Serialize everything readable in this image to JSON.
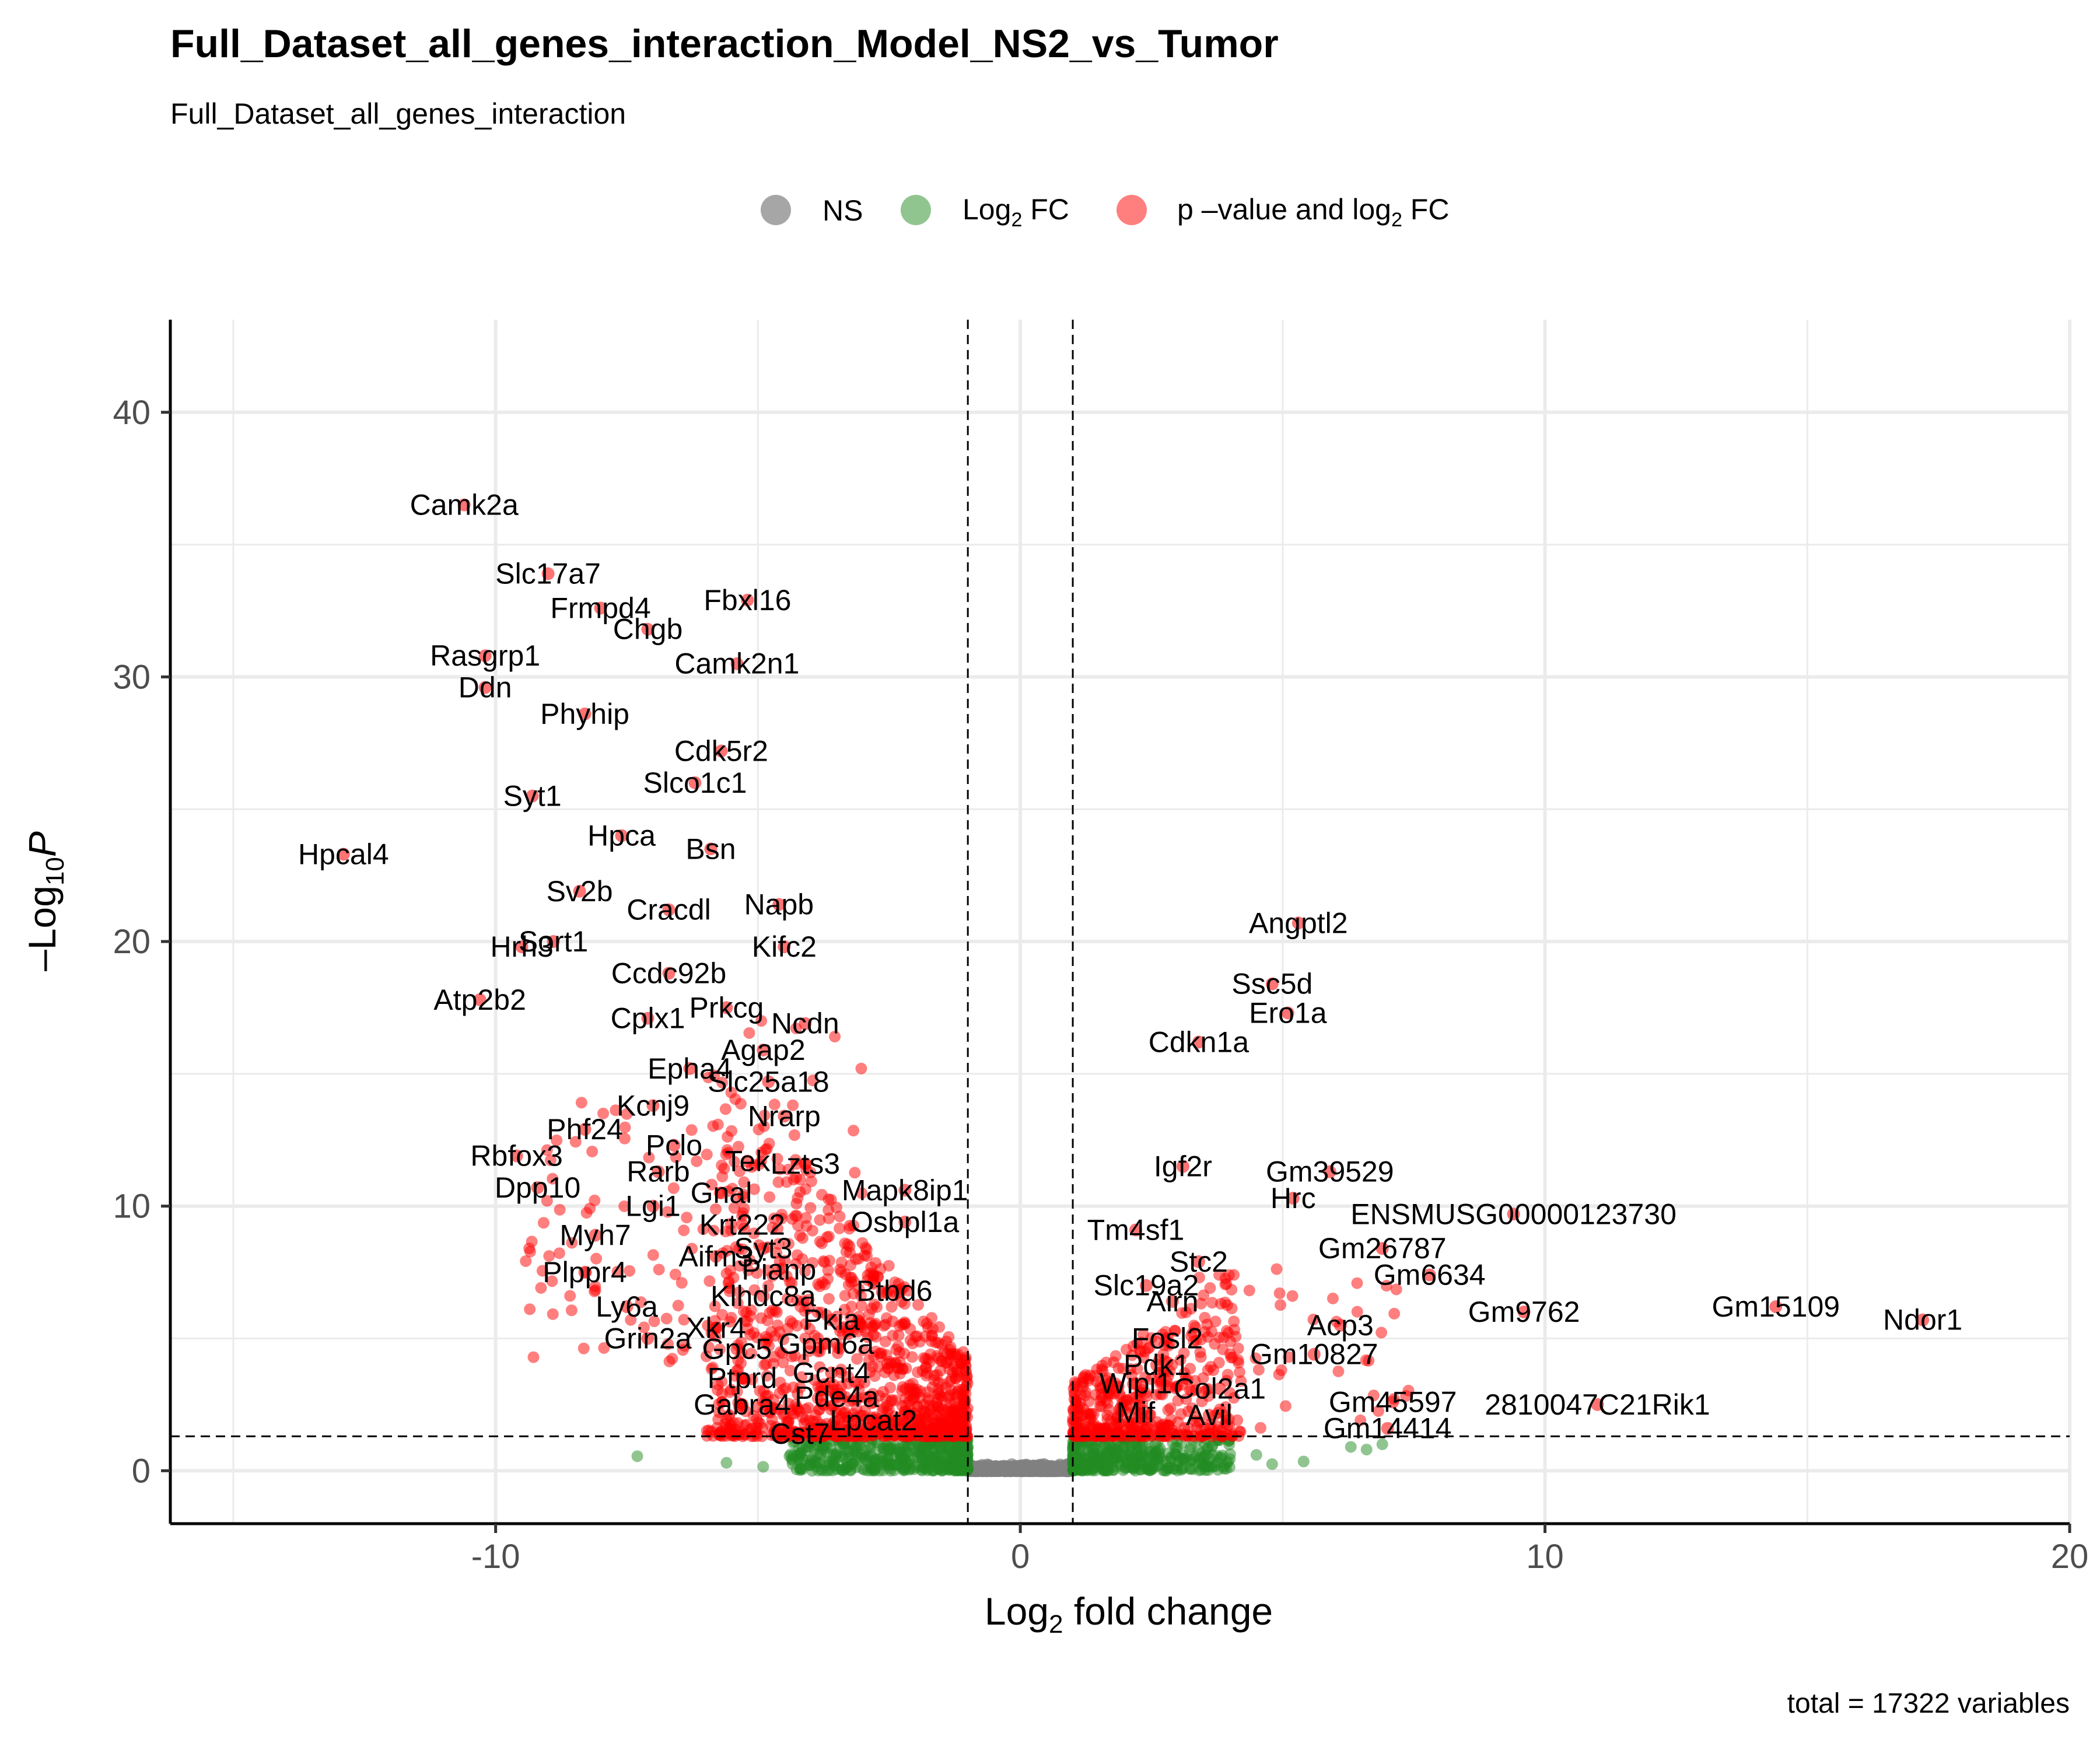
{
  "chart_data": {
    "type": "scatter",
    "title": "Full_Dataset_all_genes_interaction_Model_NS2_vs_Tumor",
    "subtitle": "Full_Dataset_all_genes_interaction",
    "xlabel_main": "Log",
    "xlabel_sub": "2",
    "xlabel_rest": " fold change",
    "ylabel_main": "Log",
    "ylabel_prefix": "–",
    "ylabel_sub": "10",
    "ylabel_italic": "P",
    "caption": "total = 17322 variables",
    "xlim": [
      -16.2,
      20
    ],
    "ylim": [
      -2,
      43.5
    ],
    "x_ticks": [
      -10,
      0,
      10,
      20
    ],
    "x_tick_labels": [
      "-10",
      "0",
      "10",
      "20"
    ],
    "y_ticks": [
      0,
      10,
      20,
      30,
      40
    ],
    "y_tick_labels": [
      "0",
      "10",
      "20",
      "30",
      "40"
    ],
    "grid": true,
    "fc_cutoff": 1,
    "p_cutoff_log10": 1.3,
    "legend": {
      "position": "top",
      "items": [
        {
          "key": "ns",
          "label": "NS",
          "color": "#808080"
        },
        {
          "key": "fc",
          "label_main": "Log",
          "label_sub": "2",
          "label_rest": " FC",
          "color": "#228B22"
        },
        {
          "key": "pfc",
          "label_main": "p –value and log",
          "label_sub": "2",
          "label_rest": " FC",
          "color": "#FF0000"
        }
      ]
    },
    "colors": {
      "ns": "#808080",
      "fc": "#228B22",
      "pfc": "#FF0000"
    },
    "labeled_points": [
      {
        "gene": "Camk2a",
        "x": -10.6,
        "y": 36.5
      },
      {
        "gene": "Slc17a7",
        "x": -9.0,
        "y": 33.9
      },
      {
        "gene": "Frmpd4",
        "x": -8.0,
        "y": 32.6
      },
      {
        "gene": "Fbxl16",
        "x": -5.2,
        "y": 32.9
      },
      {
        "gene": "Chgb",
        "x": -7.1,
        "y": 31.8
      },
      {
        "gene": "Rasgrp1",
        "x": -10.2,
        "y": 30.8
      },
      {
        "gene": "Camk2n1",
        "x": -5.4,
        "y": 30.5
      },
      {
        "gene": "Ddn",
        "x": -10.2,
        "y": 29.6
      },
      {
        "gene": "Phyhip",
        "x": -8.3,
        "y": 28.6
      },
      {
        "gene": "Cdk5r2",
        "x": -5.7,
        "y": 27.2
      },
      {
        "gene": "Slco1c1",
        "x": -6.2,
        "y": 26.0
      },
      {
        "gene": "Syt1",
        "x": -9.3,
        "y": 25.5
      },
      {
        "gene": "Hpca",
        "x": -7.6,
        "y": 24.0
      },
      {
        "gene": "Hpcal4",
        "x": -12.9,
        "y": 23.3
      },
      {
        "gene": "Bsn",
        "x": -5.9,
        "y": 23.5
      },
      {
        "gene": "Sv2b",
        "x": -8.4,
        "y": 21.9
      },
      {
        "gene": "Napb",
        "x": -4.6,
        "y": 21.4
      },
      {
        "gene": "Cracdl",
        "x": -6.7,
        "y": 21.2
      },
      {
        "gene": "Sort1",
        "x": -8.9,
        "y": 20.0
      },
      {
        "gene": "Hrh3",
        "x": -9.5,
        "y": 19.8
      },
      {
        "gene": "Kifc2",
        "x": -4.5,
        "y": 19.8
      },
      {
        "gene": "Ccdc92b",
        "x": -6.7,
        "y": 18.8
      },
      {
        "gene": "Atp2b2",
        "x": -10.3,
        "y": 17.8
      },
      {
        "gene": "Prkcg",
        "x": -5.6,
        "y": 17.5
      },
      {
        "gene": "Cplx1",
        "x": -7.1,
        "y": 17.1
      },
      {
        "gene": "Ncdn",
        "x": -4.1,
        "y": 16.9
      },
      {
        "gene": "Agap2",
        "x": -4.9,
        "y": 15.9
      },
      {
        "gene": "Epha4",
        "x": -6.3,
        "y": 15.2
      },
      {
        "gene": "Slc25a18",
        "x": -4.8,
        "y": 14.7
      },
      {
        "gene": "Kcnj9",
        "x": -7.0,
        "y": 13.8
      },
      {
        "gene": "Nrarp",
        "x": -4.5,
        "y": 13.4
      },
      {
        "gene": "Phf24",
        "x": -8.3,
        "y": 12.9
      },
      {
        "gene": "Pclo",
        "x": -6.6,
        "y": 12.3
      },
      {
        "gene": "Rbfox3",
        "x": -9.6,
        "y": 11.9
      },
      {
        "gene": "Tek",
        "x": -5.2,
        "y": 11.7
      },
      {
        "gene": "Lzts3",
        "x": -4.1,
        "y": 11.6
      },
      {
        "gene": "Rarb",
        "x": -6.9,
        "y": 11.3
      },
      {
        "gene": "Dpp10",
        "x": -9.2,
        "y": 10.7
      },
      {
        "gene": "Mapk8ip1",
        "x": -2.2,
        "y": 10.6
      },
      {
        "gene": "Gnal",
        "x": -5.7,
        "y": 10.5
      },
      {
        "gene": "Lgi1",
        "x": -7.0,
        "y": 10.0
      },
      {
        "gene": "Osbpl1a",
        "x": -2.2,
        "y": 9.4
      },
      {
        "gene": "Krt222",
        "x": -5.3,
        "y": 9.3
      },
      {
        "gene": "Myh7",
        "x": -8.1,
        "y": 8.9
      },
      {
        "gene": "Syt3",
        "x": -4.9,
        "y": 8.4
      },
      {
        "gene": "Aifm3",
        "x": -5.8,
        "y": 8.1
      },
      {
        "gene": "Plppr4",
        "x": -8.3,
        "y": 7.5
      },
      {
        "gene": "Pianp",
        "x": -4.6,
        "y": 7.6
      },
      {
        "gene": "Btbd6",
        "x": -2.4,
        "y": 6.8
      },
      {
        "gene": "Klhdc8a",
        "x": -4.9,
        "y": 6.6
      },
      {
        "gene": "Ly6a",
        "x": -7.5,
        "y": 6.2
      },
      {
        "gene": "Pkia",
        "x": -3.6,
        "y": 5.7
      },
      {
        "gene": "Xkr4",
        "x": -5.8,
        "y": 5.4
      },
      {
        "gene": "Grin2a",
        "x": -7.1,
        "y": 5.0
      },
      {
        "gene": "Gpm6a",
        "x": -3.7,
        "y": 4.8
      },
      {
        "gene": "Gpc5",
        "x": -5.4,
        "y": 4.6
      },
      {
        "gene": "Gcnt4",
        "x": -3.6,
        "y": 3.7
      },
      {
        "gene": "Ptprd",
        "x": -5.3,
        "y": 3.5
      },
      {
        "gene": "Pde4a",
        "x": -3.5,
        "y": 2.8
      },
      {
        "gene": "Gabra4",
        "x": -5.3,
        "y": 2.5
      },
      {
        "gene": "Lpcat2",
        "x": -2.8,
        "y": 1.9
      },
      {
        "gene": "Cst7",
        "x": -4.2,
        "y": 1.4
      },
      {
        "gene": "Angptl2",
        "x": 5.3,
        "y": 20.7
      },
      {
        "gene": "Ssc5d",
        "x": 4.8,
        "y": 18.4
      },
      {
        "gene": "Ero1a",
        "x": 5.1,
        "y": 17.3
      },
      {
        "gene": "Cdkn1a",
        "x": 3.4,
        "y": 16.2
      },
      {
        "gene": "Igf2r",
        "x": 3.1,
        "y": 11.5
      },
      {
        "gene": "Gm39529",
        "x": 5.9,
        "y": 11.3
      },
      {
        "gene": "Hrc",
        "x": 5.2,
        "y": 10.3
      },
      {
        "gene": "ENSMUSG00000123730",
        "x": 9.4,
        "y": 9.7
      },
      {
        "gene": "Tm4sf1",
        "x": 2.2,
        "y": 9.1
      },
      {
        "gene": "Gm26787",
        "x": 6.9,
        "y": 8.4
      },
      {
        "gene": "Stc2",
        "x": 3.4,
        "y": 7.9
      },
      {
        "gene": "Gm6634",
        "x": 7.8,
        "y": 7.4
      },
      {
        "gene": "Slc19a2",
        "x": 2.4,
        "y": 7.0
      },
      {
        "gene": "Airn",
        "x": 2.9,
        "y": 6.4
      },
      {
        "gene": "Gm9762",
        "x": 9.6,
        "y": 6.0
      },
      {
        "gene": "Gm15109",
        "x": 14.4,
        "y": 6.2
      },
      {
        "gene": "Ndor1",
        "x": 17.2,
        "y": 5.7
      },
      {
        "gene": "Acp3",
        "x": 6.1,
        "y": 5.5
      },
      {
        "gene": "Fosl2",
        "x": 2.8,
        "y": 5.0
      },
      {
        "gene": "Gm10827",
        "x": 5.6,
        "y": 4.4
      },
      {
        "gene": "Pdk1",
        "x": 2.6,
        "y": 4.0
      },
      {
        "gene": "Wipi1",
        "x": 2.2,
        "y": 3.3
      },
      {
        "gene": "Col2a1",
        "x": 3.8,
        "y": 3.1
      },
      {
        "gene": "Gm45597",
        "x": 7.1,
        "y": 2.6
      },
      {
        "gene": "2810047C21Rik1",
        "x": 11.0,
        "y": 2.5
      },
      {
        "gene": "Mif",
        "x": 2.2,
        "y": 2.2
      },
      {
        "gene": "Avil",
        "x": 3.6,
        "y": 2.1
      },
      {
        "gene": "Gm14414",
        "x": 7.0,
        "y": 1.6
      }
    ]
  }
}
